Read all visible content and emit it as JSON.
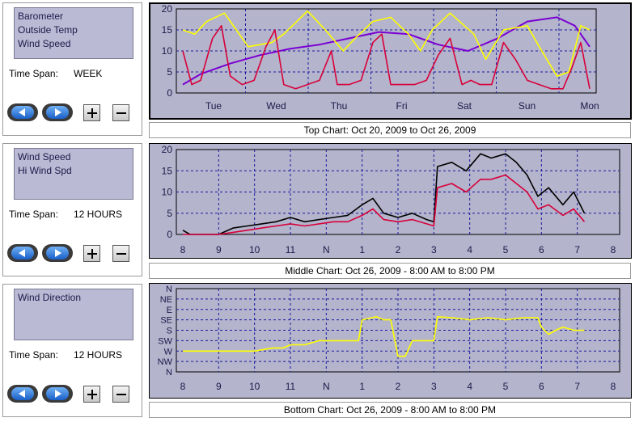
{
  "panels": [
    {
      "params": [
        "Barometer",
        "Outside Temp",
        "Wind Speed"
      ],
      "span_label": "Time Span:",
      "span_value": "WEEK"
    },
    {
      "params": [
        "Wind Speed",
        "Hi Wind Spd"
      ],
      "span_label": "Time Span:",
      "span_value": "12 HOURS"
    },
    {
      "params": [
        "Wind Direction"
      ],
      "span_label": "Time Span:",
      "span_value": "12 HOURS"
    }
  ],
  "captions": {
    "top": "Top Chart:  Oct 20, 2009  to  Oct 26, 2009",
    "middle": "Middle Chart:  Oct 26, 2009 - 8:00 AM  to  8:00 PM",
    "bottom": "Bottom Chart:  Oct 26, 2009 - 8:00 AM  to  8:00 PM"
  },
  "colors": {
    "plot_bg": "#b4b4cc",
    "barometer": "#7a00d2",
    "temp": "#ffff00",
    "wind": "#d8003a",
    "hi_wind": "#000000",
    "direction": "#ffff00"
  },
  "chart_data": [
    {
      "type": "line",
      "ylim": [
        0,
        20
      ],
      "yticks": [
        "0",
        "5",
        "10",
        "15",
        "20"
      ],
      "xticks": [
        "Tue",
        "Wed",
        "Thu",
        "Fri",
        "Sat",
        "Sun",
        "Mon"
      ],
      "xlim": [
        0,
        6.85
      ],
      "series": [
        {
          "key": "barometer",
          "x": [
            0,
            0.3,
            0.8,
            1.3,
            1.8,
            2.3,
            2.8,
            3.3,
            3.8,
            4.3,
            4.8,
            5.3,
            5.8,
            6.3,
            6.6,
            6.85
          ],
          "y": [
            2,
            4.5,
            7,
            9,
            10.5,
            11.5,
            13,
            14.5,
            14,
            11.5,
            10,
            13,
            17,
            18,
            16,
            11
          ]
        },
        {
          "key": "temp",
          "x": [
            0,
            0.2,
            0.4,
            0.7,
            0.9,
            1.1,
            1.5,
            1.7,
            2.1,
            2.4,
            2.7,
            2.9,
            3.2,
            3.5,
            3.8,
            4.0,
            4.2,
            4.5,
            4.9,
            5.1,
            5.4,
            5.8,
            6.0,
            6.3,
            6.5,
            6.7,
            6.85
          ],
          "y": [
            15,
            14,
            17,
            19,
            15,
            11,
            12,
            14,
            19.5,
            15,
            10,
            13,
            17,
            18,
            14,
            10,
            15,
            19,
            14,
            8,
            15,
            16,
            11,
            4,
            5,
            16,
            15
          ]
        },
        {
          "key": "wind",
          "x": [
            0,
            0.15,
            0.3,
            0.5,
            0.65,
            0.8,
            1.0,
            1.2,
            1.4,
            1.55,
            1.7,
            1.9,
            2.1,
            2.3,
            2.5,
            2.6,
            2.8,
            3.0,
            3.2,
            3.35,
            3.5,
            3.7,
            3.9,
            4.1,
            4.3,
            4.5,
            4.7,
            4.85,
            5.0,
            5.2,
            5.4,
            5.6,
            5.8,
            6.0,
            6.2,
            6.4,
            6.55,
            6.7,
            6.85
          ],
          "y": [
            10,
            2,
            3,
            13,
            16,
            4,
            2,
            3,
            11,
            15,
            2,
            1,
            2,
            3,
            10,
            2,
            2,
            3,
            12,
            14,
            2,
            2,
            2,
            3,
            9,
            13,
            2,
            3,
            2,
            2,
            12,
            8,
            3,
            2,
            1,
            1,
            6,
            12,
            1
          ]
        }
      ]
    },
    {
      "type": "line",
      "ylim": [
        0,
        20
      ],
      "yticks": [
        "0",
        "5",
        "10",
        "15",
        "20"
      ],
      "xticks": [
        "8",
        "9",
        "10",
        "11",
        "N",
        "1",
        "2",
        "3",
        "4",
        "5",
        "6",
        "7",
        "8"
      ],
      "xlim": [
        8,
        20
      ],
      "series": [
        {
          "key": "hi_wind",
          "x": [
            8,
            8.2,
            8.6,
            9.0,
            9.4,
            9.8,
            10.2,
            10.6,
            11.0,
            11.4,
            11.8,
            12.2,
            12.6,
            13.0,
            13.3,
            13.6,
            14.0,
            14.4,
            14.8,
            15.0,
            15.1,
            15.5,
            15.9,
            16.3,
            16.6,
            17.0,
            17.3,
            17.6,
            17.9,
            18.2,
            18.6,
            18.9,
            19.2
          ],
          "y": [
            1,
            0,
            0,
            0,
            1.5,
            2,
            2.5,
            3,
            4,
            3,
            3.5,
            4,
            4.5,
            7,
            8.5,
            5,
            4,
            5,
            3.5,
            3,
            16,
            17,
            15,
            19,
            18,
            19,
            17,
            14,
            9,
            11,
            7,
            10,
            5
          ]
        },
        {
          "key": "wind",
          "x": [
            8,
            8.2,
            8.6,
            9.0,
            9.4,
            9.8,
            10.2,
            10.6,
            11.0,
            11.4,
            11.8,
            12.2,
            12.6,
            13.0,
            13.3,
            13.6,
            14.0,
            14.4,
            14.8,
            15.0,
            15.1,
            15.5,
            15.9,
            16.3,
            16.6,
            17.0,
            17.3,
            17.6,
            17.9,
            18.2,
            18.6,
            18.9,
            19.2
          ],
          "y": [
            0,
            0,
            0,
            0,
            0.5,
            1,
            1.5,
            2,
            2.5,
            2,
            2.5,
            3,
            3,
            4.5,
            6,
            3.5,
            3,
            3.5,
            2.5,
            2,
            11,
            12,
            10,
            13,
            13,
            14,
            12,
            10,
            6,
            7,
            4.5,
            6,
            3
          ]
        }
      ]
    },
    {
      "type": "line",
      "ylim": [
        0,
        8
      ],
      "yticks": [
        "N",
        "NW",
        "W",
        "SW",
        "S",
        "SE",
        "E",
        "NE",
        "N"
      ],
      "xticks": [
        "8",
        "9",
        "10",
        "11",
        "N",
        "1",
        "2",
        "3",
        "4",
        "5",
        "6",
        "7",
        "8"
      ],
      "xlim": [
        8,
        20
      ],
      "series": [
        {
          "key": "direction",
          "x": [
            8,
            8.2,
            9.4,
            10.0,
            10.5,
            10.8,
            11.0,
            11.4,
            11.8,
            12.2,
            12.5,
            12.9,
            13.0,
            13.4,
            13.6,
            13.8,
            14.0,
            14.2,
            14.4,
            14.6,
            15.0,
            15.1,
            15.5,
            16.0,
            16.5,
            17.0,
            17.5,
            17.9,
            18.0,
            18.2,
            18.4,
            18.6,
            18.9,
            19.2
          ],
          "y": [
            2,
            2,
            2,
            2,
            2.3,
            2.3,
            2.6,
            2.6,
            3,
            3,
            3,
            3,
            5,
            5.3,
            5,
            5,
            1.5,
            1.5,
            3,
            3,
            3,
            5.3,
            5.2,
            5,
            5.2,
            5,
            5.2,
            5.2,
            4.3,
            3.6,
            4,
            4.3,
            4,
            4
          ]
        }
      ]
    }
  ]
}
